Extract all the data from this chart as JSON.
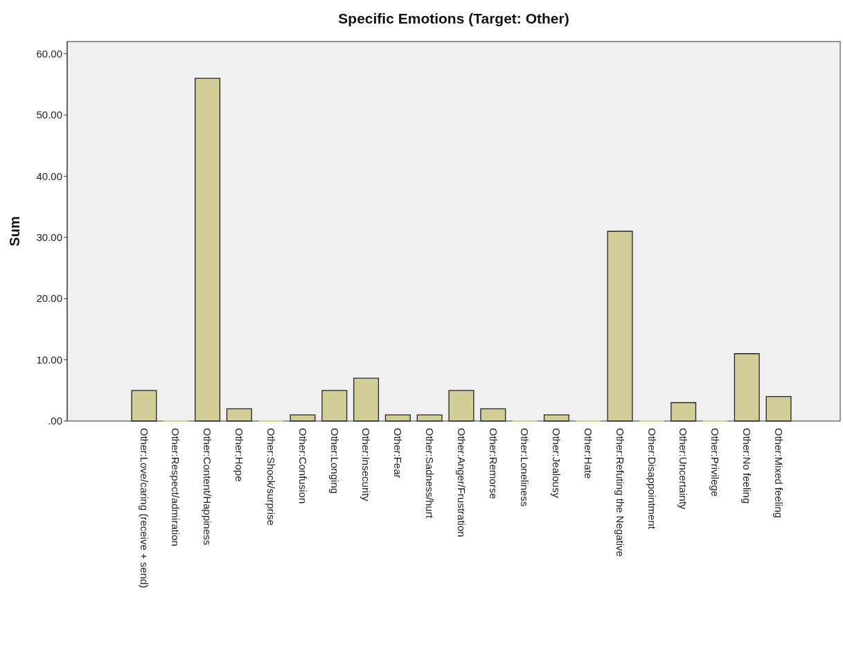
{
  "chart_data": {
    "type": "bar",
    "title": "Specific Emotions (Target: Other)",
    "ylabel": "Sum",
    "categories": [
      "Other:Love/caring (receive + send)",
      "Other:Respect/admiration",
      "Other:Content/Happiness",
      "Other:Hope",
      "Other:Shock/surprise",
      "Other:Confusion",
      "Other:Longing",
      "Other:Insecurity",
      "Other:Fear",
      "Other:Sadness/hurt",
      "Other:Anger/Frustration",
      "Other:Remorse",
      "Other:Loneliness",
      "Other:Jealousy",
      "Other:Hate",
      "Other:Refuting the Negative",
      "Other:Disappointment",
      "Other:Uncertainty",
      "Other:Privilege",
      "Other:No feeling",
      "Other:Mixed feeling"
    ],
    "values": [
      5,
      0,
      56,
      2,
      0,
      1,
      5,
      7,
      1,
      1,
      5,
      2,
      0,
      1,
      0,
      31,
      0,
      3,
      0,
      11,
      4
    ],
    "color": "#d3ce97",
    "ylim": [
      0,
      62
    ],
    "yticks": [
      {
        "value": 0,
        "label": ".00"
      },
      {
        "value": 10,
        "label": "10.00"
      },
      {
        "value": 20,
        "label": "20.00"
      },
      {
        "value": 30,
        "label": "30.00"
      },
      {
        "value": 40,
        "label": "40.00"
      },
      {
        "value": 50,
        "label": "50.00"
      },
      {
        "value": 60,
        "label": "60.00"
      }
    ],
    "grid": false
  }
}
